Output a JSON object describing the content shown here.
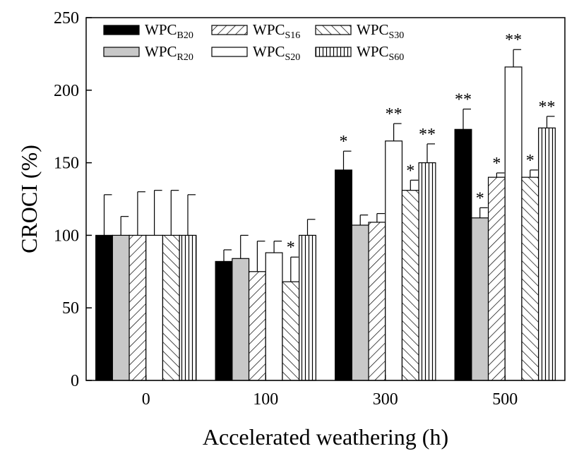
{
  "chart_data": {
    "type": "bar",
    "title": "",
    "xlabel": "Accelerated weathering (h)",
    "ylabel": "CROCI (%)",
    "ylim": [
      0,
      250
    ],
    "yticks": [
      0,
      50,
      100,
      150,
      200,
      250
    ],
    "categories": [
      "0",
      "100",
      "300",
      "500"
    ],
    "legend_placement": "top-left",
    "grid": false,
    "series": [
      {
        "name": "WPCB20",
        "base": "WPC",
        "sub": "B20",
        "pattern": "solid-black",
        "values": [
          100,
          82,
          145,
          173
        ],
        "errors": [
          28,
          8,
          13,
          14
        ],
        "significance": [
          "",
          "",
          "*",
          "**"
        ]
      },
      {
        "name": "WPCR20",
        "base": "WPC",
        "sub": "R20",
        "pattern": "solid-gray",
        "values": [
          100,
          84,
          107,
          112
        ],
        "errors": [
          13,
          16,
          7,
          7
        ],
        "significance": [
          "",
          "",
          "",
          "*"
        ]
      },
      {
        "name": "WPCS16",
        "base": "WPC",
        "sub": "S16",
        "pattern": "diagonal-forward",
        "values": [
          100,
          75,
          109,
          140
        ],
        "errors": [
          30,
          21,
          6,
          3
        ],
        "significance": [
          "",
          "",
          "",
          "*"
        ]
      },
      {
        "name": "WPCS20",
        "base": "WPC",
        "sub": "S20",
        "pattern": "white",
        "values": [
          100,
          88,
          165,
          216
        ],
        "errors": [
          31,
          8,
          12,
          12
        ],
        "significance": [
          "",
          "",
          "**",
          "**"
        ]
      },
      {
        "name": "WPCS30",
        "base": "WPC",
        "sub": "S30",
        "pattern": "diagonal-backward",
        "values": [
          100,
          68,
          131,
          140
        ],
        "errors": [
          31,
          17,
          7,
          5
        ],
        "significance": [
          "",
          "*",
          "*",
          "*"
        ]
      },
      {
        "name": "WPCS60",
        "base": "WPC",
        "sub": "S60",
        "pattern": "vertical-lines",
        "values": [
          100,
          100,
          150,
          174
        ],
        "errors": [
          28,
          11,
          13,
          8
        ],
        "significance": [
          "",
          "",
          "**",
          "**"
        ]
      }
    ]
  }
}
